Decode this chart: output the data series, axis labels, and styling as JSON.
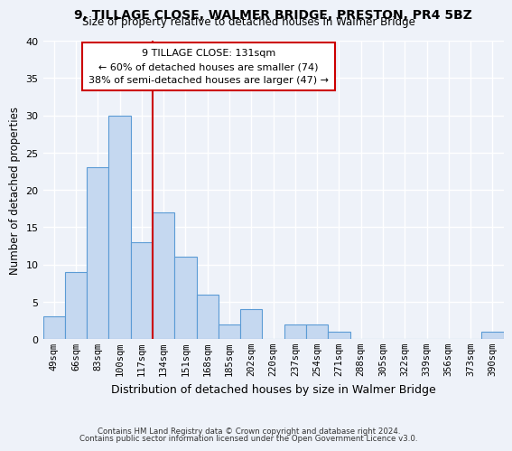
{
  "title": "9, TILLAGE CLOSE, WALMER BRIDGE, PRESTON, PR4 5BZ",
  "subtitle": "Size of property relative to detached houses in Walmer Bridge",
  "xlabel": "Distribution of detached houses by size in Walmer Bridge",
  "ylabel": "Number of detached properties",
  "bins": [
    "49sqm",
    "66sqm",
    "83sqm",
    "100sqm",
    "117sqm",
    "134sqm",
    "151sqm",
    "168sqm",
    "185sqm",
    "202sqm",
    "220sqm",
    "237sqm",
    "254sqm",
    "271sqm",
    "288sqm",
    "305sqm",
    "322sqm",
    "339sqm",
    "356sqm",
    "373sqm",
    "390sqm"
  ],
  "values": [
    3,
    9,
    23,
    30,
    13,
    17,
    11,
    6,
    2,
    4,
    0,
    2,
    2,
    1,
    0,
    0,
    0,
    0,
    0,
    0,
    1
  ],
  "bar_color": "#c5d8f0",
  "bar_edge_color": "#5b9bd5",
  "vline_index": 5,
  "vline_color": "#cc0000",
  "ylim": [
    0,
    40
  ],
  "yticks": [
    0,
    5,
    10,
    15,
    20,
    25,
    30,
    35,
    40
  ],
  "annotation_title": "9 TILLAGE CLOSE: 131sqm",
  "annotation_line1": "← 60% of detached houses are smaller (74)",
  "annotation_line2": "38% of semi-detached houses are larger (47) →",
  "annotation_box_color": "#ffffff",
  "annotation_box_edge_color": "#cc0000",
  "footer_line1": "Contains HM Land Registry data © Crown copyright and database right 2024.",
  "footer_line2": "Contains public sector information licensed under the Open Government Licence v3.0.",
  "background_color": "#eef2f9",
  "grid_color": "#ffffff"
}
